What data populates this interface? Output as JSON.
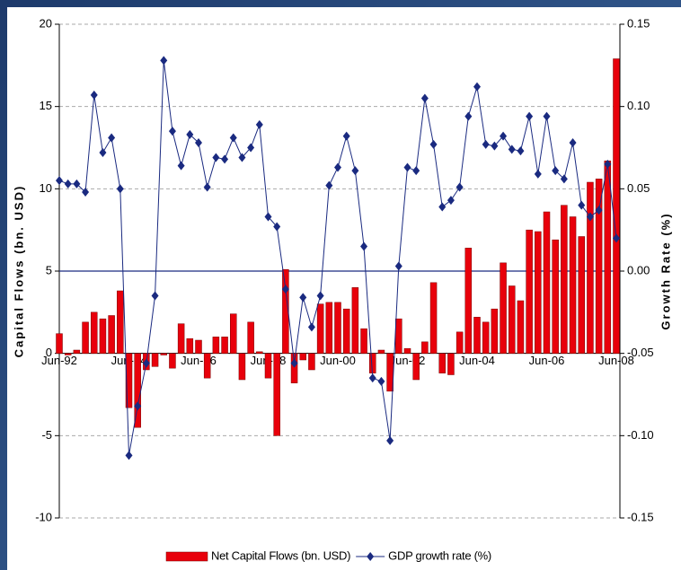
{
  "chart_data": {
    "type": "combo",
    "y_label": "Capital Flows (bn. USD)",
    "y2_label": "Growth Rate (%)",
    "categories": [
      "Jun-92",
      null,
      null,
      null,
      null,
      null,
      null,
      null,
      "Jun-94",
      null,
      null,
      null,
      null,
      null,
      null,
      null,
      "Jun-96",
      null,
      null,
      null,
      null,
      null,
      null,
      null,
      "Jun-98",
      null,
      null,
      null,
      null,
      null,
      null,
      null,
      "Jun-00",
      null,
      null,
      null,
      null,
      null,
      null,
      null,
      "Jun-02",
      null,
      null,
      null,
      null,
      null,
      null,
      null,
      "Jun-04",
      null,
      null,
      null,
      null,
      null,
      null,
      null,
      "Jun-06",
      null,
      null,
      null,
      null,
      null,
      null,
      null,
      "Jun-08"
    ],
    "series": [
      {
        "name": "Net Capital Flows (bn. USD)",
        "type": "bar",
        "color": "#e8000b",
        "values": [
          1.2,
          -0.1,
          0.2,
          1.9,
          2.5,
          2.1,
          2.3,
          3.8,
          -3.3,
          -4.5,
          -1.0,
          -0.8,
          -0.1,
          -0.9,
          1.8,
          0.9,
          0.8,
          -1.5,
          1.0,
          1.0,
          2.4,
          -1.6,
          1.9,
          0.1,
          -1.5,
          -5.0,
          5.1,
          -1.8,
          -0.4,
          -1.0,
          3.0,
          3.1,
          3.1,
          2.7,
          4.0,
          1.5,
          -1.2,
          0.2,
          -2.3,
          2.1,
          0.3,
          -1.6,
          0.7,
          4.3,
          -1.2,
          -1.3,
          1.3,
          6.4,
          2.2,
          1.9,
          2.7,
          5.5,
          4.1,
          3.2,
          7.5,
          7.4,
          8.6,
          6.9,
          9.0,
          8.3,
          7.1,
          10.4,
          10.6,
          11.7,
          17.9
        ]
      },
      {
        "name": "GDP growth rate (%)",
        "type": "line",
        "axis": "y2",
        "color": "#1a2a80",
        "values": [
          0.055,
          0.053,
          0.053,
          0.048,
          0.107,
          0.072,
          0.081,
          0.05,
          -0.112,
          -0.082,
          -0.056,
          -0.015,
          0.128,
          0.085,
          0.064,
          0.083,
          0.078,
          0.051,
          0.069,
          0.068,
          0.081,
          0.069,
          0.075,
          0.089,
          0.033,
          0.027,
          -0.011,
          -0.056,
          -0.016,
          -0.034,
          -0.015,
          0.052,
          0.063,
          0.082,
          0.061,
          0.015,
          -0.065,
          -0.067,
          -0.103,
          0.003,
          0.063,
          0.061,
          0.105,
          0.077,
          0.039,
          0.043,
          0.051,
          0.094,
          0.112,
          0.077,
          0.076,
          0.082,
          0.074,
          0.073,
          0.094,
          0.059,
          0.094,
          0.061,
          0.056,
          0.078,
          0.04,
          0.033,
          0.037,
          0.065,
          0.02
        ]
      }
    ],
    "ylim": [
      -10,
      20
    ],
    "yticks": [
      -10,
      -5,
      0,
      5,
      10,
      15,
      20
    ],
    "y2lim": [
      -0.15,
      0.15
    ],
    "y2ticks": [
      -0.15,
      {
        "value": -0.1,
        "label": "-0.10"
      },
      -0.05,
      {
        "value": 0,
        "label": "0.00"
      },
      0.05,
      {
        "value": 0.1,
        "label": "0.10"
      },
      0.15
    ],
    "grid": true
  }
}
